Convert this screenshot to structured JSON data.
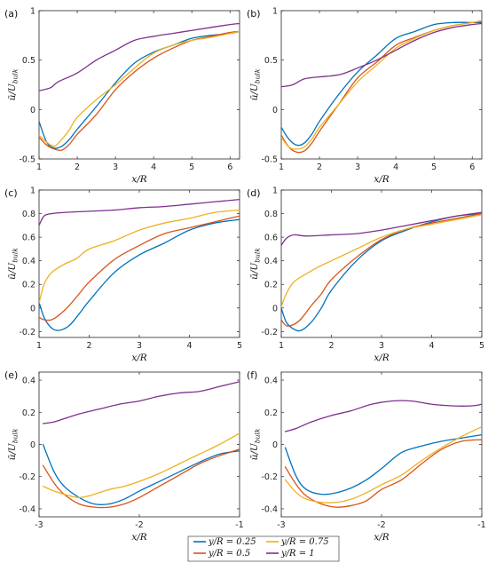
{
  "chart_data": [
    {
      "panel": "(a)",
      "type": "line",
      "xlabel": "x/R",
      "ylabel": "ū/U_bulk",
      "xlim": [
        1,
        6.25
      ],
      "ylim": [
        -0.5,
        1
      ],
      "xticks": [
        "1",
        "2",
        "3",
        "4",
        "5",
        "6"
      ],
      "xtick_values": [
        1,
        2,
        3,
        4,
        5,
        6
      ],
      "yticks": [
        "-0.5",
        "0",
        "0.5",
        "1"
      ],
      "ytick_values": [
        -0.5,
        0,
        0.5,
        1
      ],
      "series": [
        {
          "name": "y/R = 0.25",
          "x": [
            1,
            1.2,
            1.4,
            1.6,
            1.8,
            2,
            2.5,
            3,
            3.5,
            4,
            4.5,
            5,
            5.5,
            6,
            6.25
          ],
          "y": [
            -0.12,
            -0.33,
            -0.39,
            -0.37,
            -0.3,
            -0.2,
            0.03,
            0.27,
            0.47,
            0.58,
            0.65,
            0.72,
            0.75,
            0.77,
            0.79
          ]
        },
        {
          "name": "y/R = 0.5",
          "x": [
            1,
            1.2,
            1.4,
            1.6,
            1.8,
            2,
            2.5,
            3,
            3.5,
            4,
            4.5,
            5,
            5.5,
            6,
            6.25
          ],
          "y": [
            -0.28,
            -0.36,
            -0.4,
            -0.41,
            -0.35,
            -0.25,
            -0.05,
            0.2,
            0.38,
            0.52,
            0.62,
            0.7,
            0.74,
            0.78,
            0.79
          ]
        },
        {
          "name": "y/R = 0.75",
          "x": [
            1,
            1.2,
            1.4,
            1.6,
            1.8,
            2,
            2.5,
            3,
            3.5,
            4,
            4.5,
            5,
            5.5,
            6,
            6.25
          ],
          "y": [
            -0.26,
            -0.33,
            -0.37,
            -0.3,
            -0.2,
            -0.08,
            0.1,
            0.25,
            0.42,
            0.57,
            0.65,
            0.7,
            0.73,
            0.77,
            0.79
          ]
        },
        {
          "name": "y/R = 1",
          "x": [
            1,
            1.3,
            1.5,
            2,
            2.5,
            3,
            3.5,
            4,
            4.5,
            5,
            5.5,
            6,
            6.25
          ],
          "y": [
            0.19,
            0.22,
            0.28,
            0.37,
            0.5,
            0.6,
            0.7,
            0.74,
            0.77,
            0.8,
            0.83,
            0.86,
            0.87
          ]
        }
      ]
    },
    {
      "panel": "(b)",
      "type": "line",
      "xlabel": "x/R",
      "ylabel": "ū/U_bulk",
      "xlim": [
        1,
        6.25
      ],
      "ylim": [
        -0.5,
        1
      ],
      "xticks": [
        "1",
        "2",
        "3",
        "4",
        "5",
        "6"
      ],
      "xtick_values": [
        1,
        2,
        3,
        4,
        5,
        6
      ],
      "yticks": [
        "-0.5",
        "0",
        "0.5",
        "1"
      ],
      "ytick_values": [
        -0.5,
        0,
        0.5,
        1
      ],
      "series": [
        {
          "name": "y/R = 0.25",
          "x": [
            1,
            1.2,
            1.4,
            1.6,
            1.8,
            2,
            2.5,
            3,
            3.5,
            4,
            4.5,
            5,
            5.5,
            6,
            6.25
          ],
          "y": [
            -0.18,
            -0.3,
            -0.36,
            -0.34,
            -0.25,
            -0.12,
            0.15,
            0.38,
            0.55,
            0.72,
            0.79,
            0.86,
            0.88,
            0.88,
            0.88
          ]
        },
        {
          "name": "y/R = 0.5",
          "x": [
            1,
            1.2,
            1.4,
            1.6,
            1.8,
            2,
            2.5,
            3,
            3.5,
            4,
            4.5,
            5,
            5.5,
            6,
            6.25
          ],
          "y": [
            -0.26,
            -0.38,
            -0.43,
            -0.42,
            -0.34,
            -0.22,
            0.05,
            0.32,
            0.48,
            0.65,
            0.73,
            0.8,
            0.85,
            0.88,
            0.89
          ]
        },
        {
          "name": "y/R = 0.75",
          "x": [
            1,
            1.2,
            1.4,
            1.6,
            1.8,
            2,
            2.5,
            3,
            3.5,
            4,
            4.5,
            5,
            5.5,
            6,
            6.25
          ],
          "y": [
            -0.28,
            -0.38,
            -0.4,
            -0.38,
            -0.3,
            -0.18,
            0.05,
            0.28,
            0.45,
            0.62,
            0.72,
            0.8,
            0.85,
            0.88,
            0.9
          ]
        },
        {
          "name": "y/R = 1",
          "x": [
            1,
            1.3,
            1.6,
            2,
            2.3,
            2.6,
            3,
            3.5,
            4,
            4.5,
            5,
            5.5,
            6,
            6.25
          ],
          "y": [
            0.23,
            0.25,
            0.31,
            0.33,
            0.34,
            0.36,
            0.42,
            0.5,
            0.6,
            0.7,
            0.78,
            0.83,
            0.86,
            0.87
          ]
        }
      ]
    },
    {
      "panel": "(c)",
      "type": "line",
      "xlabel": "x/R",
      "ylabel": "ū/U_bulk",
      "xlim": [
        1,
        5
      ],
      "ylim": [
        -0.25,
        1
      ],
      "xticks": [
        "1",
        "2",
        "3",
        "4",
        "5"
      ],
      "xtick_values": [
        1,
        2,
        3,
        4,
        5
      ],
      "yticks": [
        "-0.2",
        "0",
        "0.2",
        "0.4",
        "0.6",
        "0.8",
        "1"
      ],
      "ytick_values": [
        -0.2,
        0,
        0.2,
        0.4,
        0.6,
        0.8,
        1
      ],
      "series": [
        {
          "name": "y/R = 0.25",
          "x": [
            1,
            1.1,
            1.25,
            1.4,
            1.6,
            1.8,
            2,
            2.5,
            3,
            3.5,
            4,
            4.5,
            5
          ],
          "y": [
            0.05,
            -0.08,
            -0.17,
            -0.19,
            -0.15,
            -0.05,
            0.06,
            0.3,
            0.45,
            0.55,
            0.66,
            0.72,
            0.75
          ]
        },
        {
          "name": "y/R = 0.5",
          "x": [
            1,
            1.1,
            1.25,
            1.4,
            1.6,
            1.8,
            2,
            2.5,
            3,
            3.5,
            4,
            4.5,
            5
          ],
          "y": [
            -0.08,
            -0.1,
            -0.1,
            -0.06,
            0.02,
            0.12,
            0.22,
            0.41,
            0.53,
            0.63,
            0.68,
            0.73,
            0.78
          ]
        },
        {
          "name": "y/R = 0.75",
          "x": [
            1,
            1.1,
            1.25,
            1.5,
            1.75,
            2,
            2.5,
            3,
            3.5,
            4,
            4.5,
            5
          ],
          "y": [
            0.04,
            0.2,
            0.3,
            0.37,
            0.42,
            0.5,
            0.57,
            0.66,
            0.72,
            0.76,
            0.81,
            0.83
          ]
        },
        {
          "name": "y/R = 1",
          "x": [
            1,
            1.1,
            1.25,
            1.5,
            2,
            2.5,
            3,
            3.5,
            4,
            4.5,
            5
          ],
          "y": [
            0.7,
            0.78,
            0.8,
            0.81,
            0.82,
            0.83,
            0.85,
            0.86,
            0.88,
            0.9,
            0.92
          ]
        }
      ]
    },
    {
      "panel": "(d)",
      "type": "line",
      "xlabel": "x/R",
      "ylabel": "ū/U_bulk",
      "xlim": [
        1,
        5
      ],
      "ylim": [
        -0.25,
        1
      ],
      "xticks": [
        "1",
        "2",
        "3",
        "4",
        "5"
      ],
      "xtick_values": [
        1,
        2,
        3,
        4,
        5
      ],
      "yticks": [
        "-0.2",
        "0",
        "0.2",
        "0.4",
        "0.6",
        "0.8",
        "1"
      ],
      "ytick_values": [
        -0.2,
        0,
        0.2,
        0.4,
        0.6,
        0.8,
        1
      ],
      "series": [
        {
          "name": "y/R = 0.25",
          "x": [
            1,
            1.1,
            1.25,
            1.4,
            1.6,
            1.8,
            2,
            2.5,
            3,
            3.5,
            4,
            4.5,
            5
          ],
          "y": [
            0.0,
            -0.12,
            -0.18,
            -0.19,
            -0.12,
            0.0,
            0.15,
            0.4,
            0.57,
            0.66,
            0.73,
            0.78,
            0.8
          ]
        },
        {
          "name": "y/R = 0.5",
          "x": [
            1,
            1.1,
            1.25,
            1.4,
            1.6,
            1.8,
            2,
            2.5,
            3,
            3.5,
            4,
            4.5,
            5
          ],
          "y": [
            -0.1,
            -0.15,
            -0.14,
            -0.09,
            0.02,
            0.12,
            0.24,
            0.43,
            0.58,
            0.67,
            0.72,
            0.76,
            0.8
          ]
        },
        {
          "name": "y/R = 0.75",
          "x": [
            1,
            1.1,
            1.25,
            1.5,
            1.75,
            2,
            2.5,
            3,
            3.5,
            4,
            4.5,
            5
          ],
          "y": [
            0.01,
            0.12,
            0.22,
            0.29,
            0.35,
            0.4,
            0.5,
            0.6,
            0.67,
            0.71,
            0.75,
            0.79
          ]
        },
        {
          "name": "y/R = 1",
          "x": [
            1,
            1.1,
            1.25,
            1.5,
            2,
            2.5,
            3,
            3.5,
            4,
            4.5,
            5
          ],
          "y": [
            0.53,
            0.59,
            0.62,
            0.61,
            0.62,
            0.63,
            0.66,
            0.7,
            0.74,
            0.78,
            0.81
          ]
        }
      ]
    },
    {
      "panel": "(e)",
      "type": "line",
      "xlabel": "x/R",
      "ylabel": "ū/U_bulk",
      "xlim": [
        -3,
        -1
      ],
      "ylim": [
        -0.45,
        0.45
      ],
      "xticks": [
        "-3",
        "-2",
        "-1"
      ],
      "xtick_values": [
        -3,
        -2,
        -1
      ],
      "yticks": [
        "-0.4",
        "-0.2",
        "0",
        "0.2",
        "0.4"
      ],
      "ytick_values": [
        -0.4,
        -0.2,
        0,
        0.2,
        0.4
      ],
      "series": [
        {
          "name": "y/R = 0.25",
          "x": [
            -2.96,
            -2.85,
            -2.75,
            -2.6,
            -2.45,
            -2.3,
            -2.15,
            -2,
            -1.8,
            -1.6,
            -1.4,
            -1.2,
            -1
          ],
          "y": [
            0.0,
            -0.17,
            -0.26,
            -0.33,
            -0.37,
            -0.37,
            -0.34,
            -0.29,
            -0.23,
            -0.17,
            -0.11,
            -0.06,
            -0.04
          ]
        },
        {
          "name": "y/R = 0.5",
          "x": [
            -2.96,
            -2.85,
            -2.75,
            -2.6,
            -2.45,
            -2.3,
            -2.15,
            -2,
            -1.8,
            -1.6,
            -1.4,
            -1.2,
            -1
          ],
          "y": [
            -0.13,
            -0.24,
            -0.31,
            -0.37,
            -0.39,
            -0.39,
            -0.37,
            -0.33,
            -0.26,
            -0.19,
            -0.12,
            -0.07,
            -0.03
          ]
        },
        {
          "name": "y/R = 0.75",
          "x": [
            -2.96,
            -2.85,
            -2.75,
            -2.6,
            -2.45,
            -2.3,
            -2.15,
            -2,
            -1.8,
            -1.6,
            -1.4,
            -1.2,
            -1
          ],
          "y": [
            -0.26,
            -0.29,
            -0.31,
            -0.33,
            -0.31,
            -0.28,
            -0.26,
            -0.23,
            -0.18,
            -0.12,
            -0.06,
            0.0,
            0.07
          ]
        },
        {
          "name": "y/R = 1",
          "x": [
            -2.96,
            -2.85,
            -2.75,
            -2.6,
            -2.4,
            -2.2,
            -2,
            -1.8,
            -1.6,
            -1.4,
            -1.2,
            -1
          ],
          "y": [
            0.13,
            0.14,
            0.16,
            0.19,
            0.22,
            0.25,
            0.27,
            0.3,
            0.32,
            0.33,
            0.36,
            0.39
          ]
        }
      ]
    },
    {
      "panel": "(f)",
      "type": "line",
      "xlabel": "x/R",
      "ylabel": "ū/U_bulk",
      "xlim": [
        -3,
        -1
      ],
      "ylim": [
        -0.45,
        0.45
      ],
      "xticks": [
        "-3",
        "-2",
        "-1"
      ],
      "xtick_values": [
        -3,
        -2,
        -1
      ],
      "yticks": [
        "-0.4",
        "-0.2",
        "0",
        "0.2",
        "0.4"
      ],
      "ytick_values": [
        -0.4,
        -0.2,
        0,
        0.2,
        0.4
      ],
      "series": [
        {
          "name": "y/R = 0.25",
          "x": [
            -2.96,
            -2.85,
            -2.75,
            -2.6,
            -2.45,
            -2.3,
            -2.15,
            -2,
            -1.8,
            -1.6,
            -1.4,
            -1.2,
            -1
          ],
          "y": [
            -0.02,
            -0.2,
            -0.28,
            -0.31,
            -0.3,
            -0.27,
            -0.22,
            -0.15,
            -0.05,
            -0.01,
            0.02,
            0.04,
            0.06
          ]
        },
        {
          "name": "y/R = 0.5",
          "x": [
            -2.96,
            -2.85,
            -2.75,
            -2.6,
            -2.45,
            -2.3,
            -2.15,
            -2,
            -1.8,
            -1.6,
            -1.4,
            -1.2,
            -1
          ],
          "y": [
            -0.14,
            -0.25,
            -0.32,
            -0.37,
            -0.39,
            -0.38,
            -0.35,
            -0.28,
            -0.22,
            -0.12,
            -0.03,
            0.02,
            0.03
          ]
        },
        {
          "name": "y/R = 0.75",
          "x": [
            -2.96,
            -2.85,
            -2.75,
            -2.6,
            -2.45,
            -2.3,
            -2.15,
            -2,
            -1.8,
            -1.6,
            -1.4,
            -1.2,
            -1
          ],
          "y": [
            -0.22,
            -0.3,
            -0.34,
            -0.36,
            -0.36,
            -0.34,
            -0.3,
            -0.25,
            -0.19,
            -0.1,
            -0.02,
            0.05,
            0.11
          ]
        },
        {
          "name": "y/R = 1",
          "x": [
            -2.96,
            -2.85,
            -2.7,
            -2.5,
            -2.3,
            -2.1,
            -1.9,
            -1.7,
            -1.5,
            -1.3,
            -1.1,
            -1
          ],
          "y": [
            0.08,
            0.1,
            0.14,
            0.18,
            0.21,
            0.25,
            0.27,
            0.27,
            0.25,
            0.24,
            0.24,
            0.25
          ]
        }
      ]
    }
  ],
  "legend": {
    "placement": "bottom-center",
    "entries": [
      {
        "label": "y/R = 0.25",
        "color": "#0072BD"
      },
      {
        "label": "y/R = 0.75",
        "color": "#EDB120"
      },
      {
        "label": "y/R = 0.5",
        "color": "#D95319"
      },
      {
        "label": "y/R = 1",
        "color": "#7E2F8E"
      }
    ]
  },
  "colors": {
    "y/R = 0.25": "#0072BD",
    "y/R = 0.5": "#D95319",
    "y/R = 0.75": "#EDB120",
    "y/R = 1": "#7E2F8E"
  }
}
